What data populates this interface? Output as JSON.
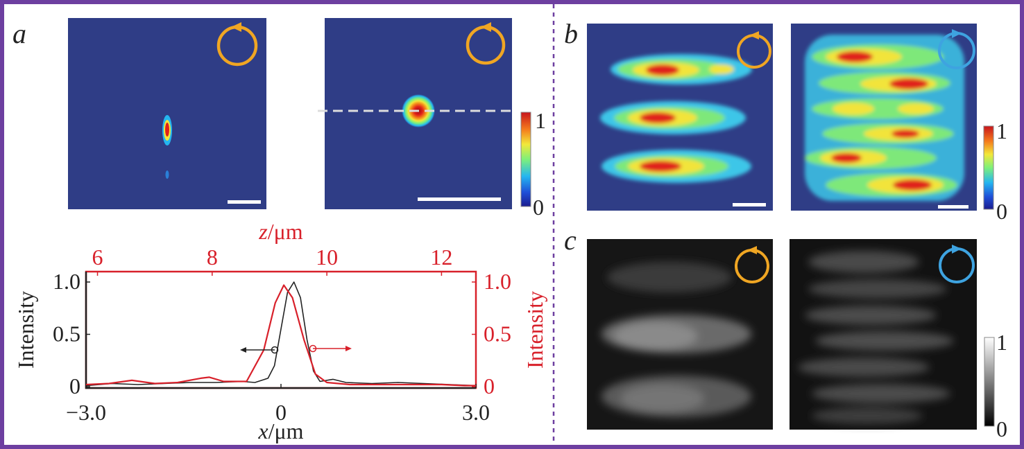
{
  "panels": {
    "a": {
      "label": "a"
    },
    "b": {
      "label": "b"
    },
    "c": {
      "label": "c"
    }
  },
  "colorbars": {
    "jet": {
      "max": "1",
      "min": "0"
    },
    "jet2": {
      "max": "1",
      "min": "0"
    },
    "gray": {
      "max": "1",
      "min": "0"
    }
  },
  "icons": {
    "left_handed": "orange circular arrow (counter-clockwise)",
    "right_handed": "blue circular arrow (clockwise)"
  },
  "colors": {
    "frame": "#6d3fa0",
    "orange": "#f0a623",
    "blue": "#3ea3e0",
    "red": "#d8202a",
    "black": "#222222",
    "background_map": "#2f3d86"
  },
  "chart_data": {
    "type": "line",
    "x_bottom_label_var": "x",
    "x_bottom_label_unit": "/μm",
    "x_top_label_var": "z",
    "x_top_label_unit": "/μm",
    "ylabel_left": "Intensity",
    "ylabel_right": "Intensity",
    "bottom_ticks": [
      "−3.0",
      "0",
      "3.0"
    ],
    "top_ticks": [
      "6",
      "8",
      "10",
      "12"
    ],
    "left_ticks": [
      "1.0",
      "0.5",
      "0"
    ],
    "right_ticks": [
      "1.0",
      "0.5",
      "0"
    ],
    "xlim_bottom": [
      -3.0,
      3.0
    ],
    "xlim_top": [
      5.8,
      12.6
    ],
    "ylim": [
      0,
      1.05
    ],
    "series": [
      {
        "axis": "bottom",
        "x": [
          -3.0,
          -2.6,
          -2.2,
          -1.8,
          -1.4,
          -1.0,
          -0.6,
          -0.4,
          -0.2,
          -0.1,
          0.0,
          0.1,
          0.2,
          0.3,
          0.4,
          0.5,
          0.6,
          0.8,
          1.0,
          1.4,
          1.8,
          2.2,
          2.6,
          3.0
        ],
        "y": [
          0.01,
          0.03,
          0.02,
          0.03,
          0.04,
          0.04,
          0.05,
          0.04,
          0.08,
          0.2,
          0.55,
          0.9,
          1.0,
          0.85,
          0.45,
          0.15,
          0.05,
          0.07,
          0.04,
          0.03,
          0.04,
          0.03,
          0.02,
          0.01
        ]
      },
      {
        "axis": "top",
        "x": [
          5.8,
          6.2,
          6.6,
          7.0,
          7.4,
          7.8,
          7.95,
          8.2,
          8.6,
          8.9,
          9.1,
          9.25,
          9.4,
          9.6,
          9.8,
          10.0,
          10.4,
          10.8,
          11.2,
          11.6,
          12.0,
          12.4,
          12.6
        ],
        "y": [
          0.02,
          0.03,
          0.06,
          0.03,
          0.04,
          0.08,
          0.09,
          0.05,
          0.05,
          0.35,
          0.8,
          0.97,
          0.85,
          0.45,
          0.12,
          0.04,
          0.02,
          0.02,
          0.02,
          0.02,
          0.02,
          0.01,
          0.01
        ]
      }
    ]
  }
}
